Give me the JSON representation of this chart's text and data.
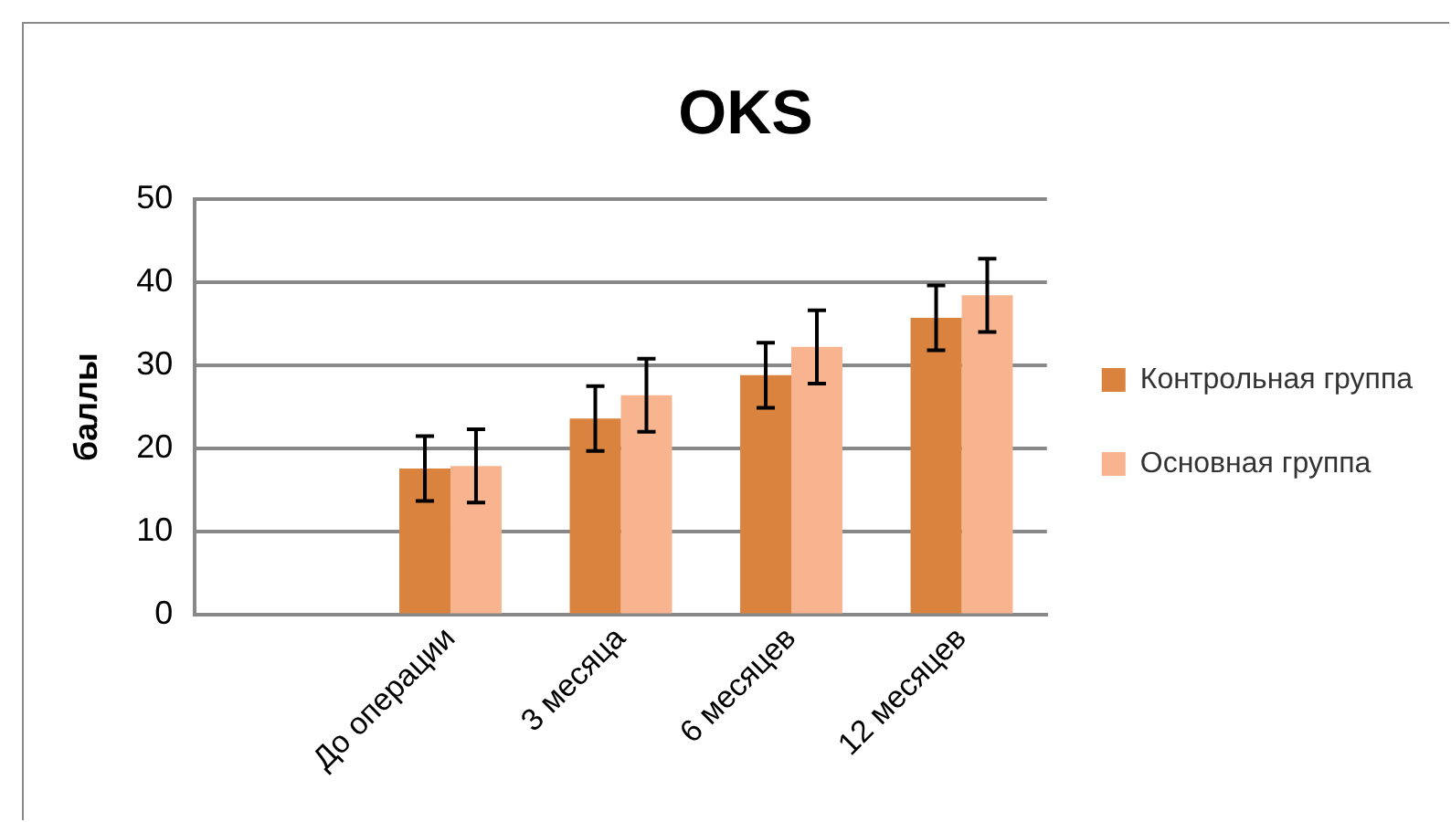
{
  "chart_data": {
    "type": "bar",
    "title": "OKS",
    "ylabel": "баллы",
    "categories": [
      null,
      "До операции",
      "3 месяца",
      "6 месяцев",
      "12 месяцев"
    ],
    "series": [
      {
        "name": "Контрольная группа",
        "color": "#d9833f",
        "values": [
          null,
          17.6,
          23.6,
          28.8,
          35.7
        ],
        "errors": [
          null,
          3.9,
          3.9,
          3.9,
          3.9
        ]
      },
      {
        "name": "Основная группа",
        "color": "#f8b48e",
        "values": [
          null,
          17.9,
          26.4,
          32.2,
          38.4
        ],
        "errors": [
          null,
          4.4,
          4.4,
          4.4,
          4.4
        ]
      }
    ],
    "ylim": [
      0,
      50
    ],
    "yticks": [
      0,
      10,
      20,
      30,
      40,
      50
    ],
    "grid": "y",
    "legend": "right"
  }
}
